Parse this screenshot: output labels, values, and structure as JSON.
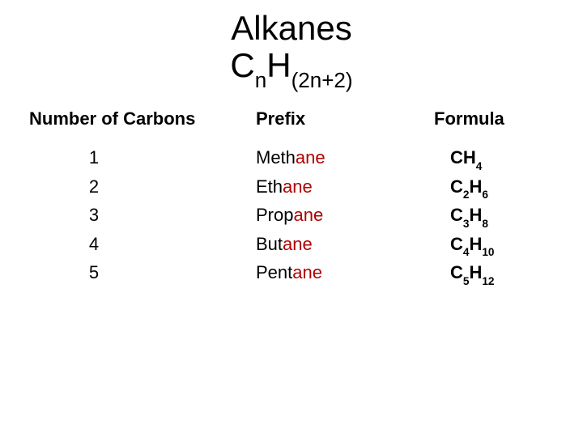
{
  "title": {
    "line1": "Alkanes",
    "base1": "C",
    "sub1": "n",
    "base2": "H",
    "sub2": "(2n+2)",
    "title_fontsize": 42,
    "title_color": "#000000"
  },
  "table": {
    "type": "table",
    "columns": [
      "Number of Carbons",
      "Prefix",
      "Formula"
    ],
    "header_fontsize": 22,
    "header_weight": "700",
    "body_fontsize": 22,
    "suffix_color": "#b00000",
    "text_color": "#000000",
    "background_color": "#ffffff",
    "rows": [
      {
        "n": "1",
        "prefix_root": "Meth",
        "prefix_suffix": "ane",
        "formula": {
          "e1": "C",
          "s1": "",
          "e2": "H",
          "s2": "4"
        }
      },
      {
        "n": "2",
        "prefix_root": "Eth",
        "prefix_suffix": "ane",
        "formula": {
          "e1": "C",
          "s1": "2",
          "e2": "H",
          "s2": "6"
        }
      },
      {
        "n": "3",
        "prefix_root": "Prop",
        "prefix_suffix": "ane",
        "formula": {
          "e1": "C",
          "s1": "3",
          "e2": "H",
          "s2": "8"
        }
      },
      {
        "n": "4",
        "prefix_root": "But",
        "prefix_suffix": "ane",
        "formula": {
          "e1": "C",
          "s1": "4",
          "e2": "H",
          "s2": "10"
        }
      },
      {
        "n": "5",
        "prefix_root": "Pent",
        "prefix_suffix": "ane",
        "formula": {
          "e1": "C",
          "s1": "5",
          "e2": "H",
          "s2": "12"
        }
      }
    ]
  }
}
